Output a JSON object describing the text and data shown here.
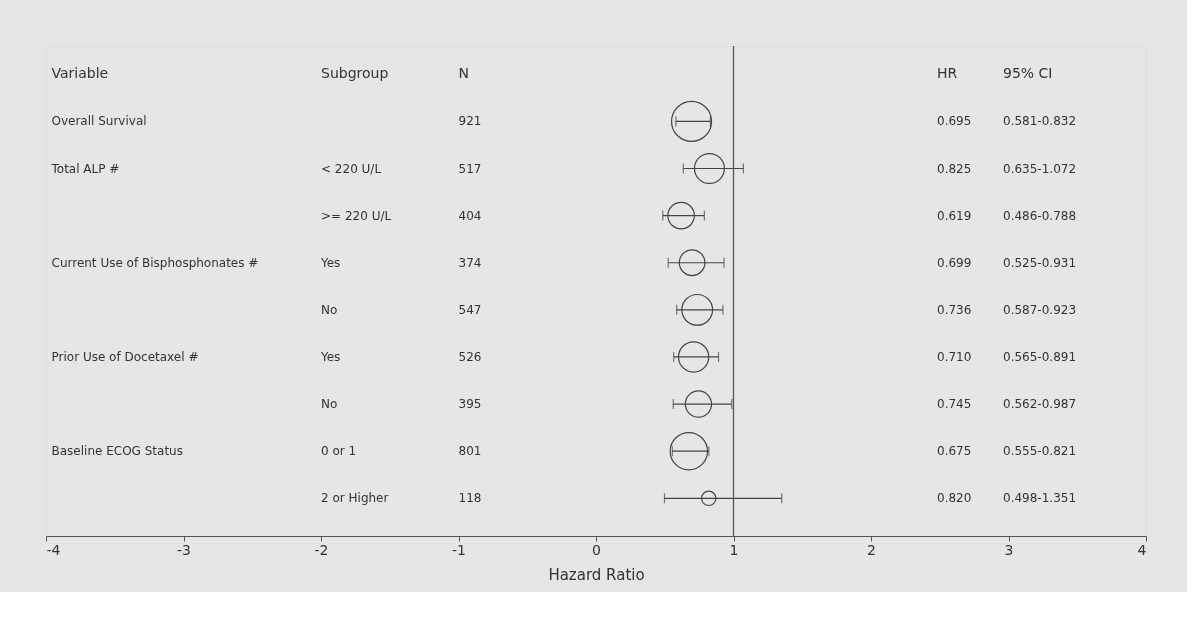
{
  "chart_data": {
    "type": "bubble",
    "orientation": "horizontal",
    "xlabel": "Hazard Ratio",
    "categories": [
      null,
      "< 220 U/L",
      ">= 220 U/L",
      "Yes",
      "No",
      "Yes",
      "No",
      "0 or 1",
      "2 or Higher"
    ],
    "values": [
      0.695,
      0.825,
      0.619,
      0.699,
      0.736,
      0.71,
      0.745,
      0.675,
      0.82
    ],
    "errors": [
      [
        0.581,
        0.832
      ],
      [
        0.635,
        1.072
      ],
      [
        0.486,
        0.788
      ],
      [
        0.525,
        0.931
      ],
      [
        0.587,
        0.923
      ],
      [
        0.565,
        0.891
      ],
      [
        0.562,
        0.987
      ],
      [
        0.555,
        0.821
      ],
      [
        0.498,
        1.351
      ]
    ],
    "sizes": [
      1,
      0.56,
      0.44,
      0.41,
      0.59,
      0.57,
      0.43,
      0.87,
      0.13
    ],
    "color": "#444444",
    "xlim": [
      -4,
      4
    ],
    "xticks": [
      -4,
      -3,
      -2,
      -1,
      0,
      1,
      2,
      3,
      4
    ],
    "ref_lines": [
      {
        "axis": "x",
        "value": 1
      }
    ],
    "annotations": [
      "Variable",
      "Subgroup",
      "N",
      "HR",
      "95% CI",
      "Overall Survival",
      "921",
      "0.695",
      "0.581-0.832",
      "Total ALP #",
      "517",
      "0.825",
      "0.635-1.072",
      null,
      "404",
      "0.619",
      "0.486-0.788",
      "Current Use of Bisphosphonates #",
      "374",
      "0.699",
      "0.525-0.931",
      null,
      "547",
      "0.736",
      "0.587-0.923",
      "Prior Use of Docetaxel #",
      "526",
      "0.710",
      "0.565-0.891",
      null,
      "395",
      "0.745",
      "0.562-0.987",
      "Baseline ECOG Status",
      "801",
      "0.675",
      "0.555-0.821",
      null,
      "118",
      "0.820",
      "0.498-1.351"
    ],
    "grid": false
  }
}
